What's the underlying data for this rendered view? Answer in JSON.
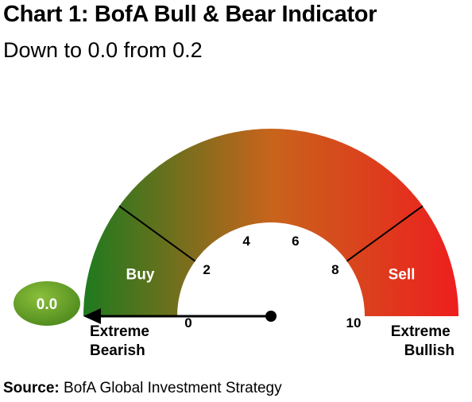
{
  "header": {
    "title": "Chart 1: BofA Bull & Bear Indicator",
    "subtitle": "Down to 0.0 from 0.2"
  },
  "chart_data": {
    "type": "gauge",
    "min": 0,
    "max": 10,
    "value": 0.0,
    "value_label": "0.0",
    "ticks": [
      "0",
      "2",
      "4",
      "6",
      "8",
      "10"
    ],
    "tick_values": [
      0,
      2,
      4,
      6,
      8,
      10
    ],
    "zones": [
      {
        "label": "Buy",
        "from": 0,
        "to": 2
      },
      {
        "label": "Sell",
        "from": 8,
        "to": 10
      }
    ],
    "left_label": [
      "Extreme",
      "Bearish"
    ],
    "right_label": [
      "Extreme",
      "Bullish"
    ],
    "colors": {
      "bearish": "#1e7a1e",
      "mid": "#c8641c",
      "bullish": "#ee1e1e",
      "badge": "#4e8a1e"
    }
  },
  "footer": {
    "source_label": "Source:",
    "source_text": " BofA Global Investment Strategy"
  }
}
